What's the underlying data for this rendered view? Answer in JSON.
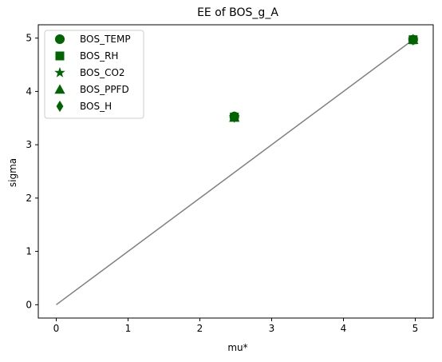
{
  "chart_data": {
    "type": "scatter",
    "title": "EE of BOS_g_A",
    "xlabel": "mu*",
    "ylabel": "sigma",
    "xlim": [
      -0.25,
      5.25
    ],
    "ylim": [
      -0.25,
      5.25
    ],
    "xticks": [
      0,
      1,
      2,
      3,
      4,
      5
    ],
    "yticks": [
      0,
      1,
      2,
      3,
      4,
      5
    ],
    "grid": false,
    "legend_position": "upper-left",
    "reference_line": {
      "x": [
        0,
        4.97
      ],
      "y": [
        0,
        4.97
      ],
      "color": "#808080"
    },
    "marker_color": "#006400",
    "series": [
      {
        "name": "BOS_TEMP",
        "marker": "circle",
        "x": [
          2.48,
          4.97
        ],
        "y": [
          3.53,
          4.97
        ]
      },
      {
        "name": "BOS_RH",
        "marker": "square",
        "x": [
          2.48,
          4.97
        ],
        "y": [
          3.52,
          4.97
        ]
      },
      {
        "name": "BOS_CO2",
        "marker": "star",
        "x": [
          2.48,
          4.97
        ],
        "y": [
          3.52,
          4.97
        ]
      },
      {
        "name": "BOS_PPFD",
        "marker": "triangle",
        "x": [
          2.48,
          4.97
        ],
        "y": [
          3.51,
          4.97
        ]
      },
      {
        "name": "BOS_H",
        "marker": "diamond",
        "x": [
          2.48,
          4.97
        ],
        "y": [
          3.52,
          4.97
        ]
      }
    ]
  }
}
